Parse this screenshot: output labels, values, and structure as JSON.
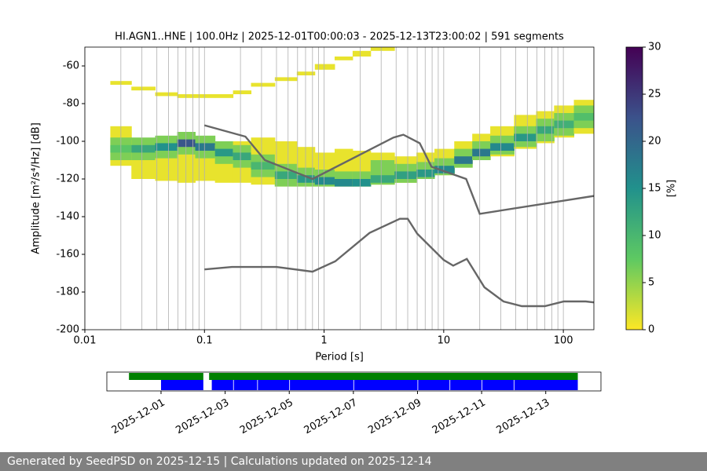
{
  "chart_data": {
    "type": "ppsd",
    "title": "HI.AGN1..HNE | 100.0Hz | 2025-12-01T00:00:03 - 2025-12-13T23:00:02 | 591 segments",
    "xlabel": "Period [s]",
    "ylabel": "Amplitude [m²/s⁴/Hz] [dB]",
    "xscale": "log",
    "xlim": [
      0.01,
      180
    ],
    "xticks": [
      0.01,
      0.1,
      1,
      10,
      100
    ],
    "xminorticks": [
      0.02,
      0.03,
      0.04,
      0.05,
      0.06,
      0.07,
      0.08,
      0.09,
      0.2,
      0.3,
      0.4,
      0.5,
      0.6,
      0.7,
      0.8,
      0.9,
      2,
      3,
      4,
      5,
      6,
      7,
      8,
      9,
      20,
      30,
      40,
      50,
      60,
      70,
      80,
      90
    ],
    "grid": true,
    "ylim": [
      -200,
      -50
    ],
    "yticks": [
      -200,
      -180,
      -160,
      -140,
      -120,
      -100,
      -80,
      -60
    ],
    "colormap": [
      "#fde725",
      "#5ec962",
      "#21918c",
      "#3b528b",
      "#440154"
    ],
    "clim": [
      0,
      30
    ],
    "cticks": [
      0,
      5,
      10,
      15,
      20,
      25,
      30
    ],
    "clabel": "[%]",
    "pdf_columns": [
      {
        "period": 0.02,
        "cells": [
          [
            -113,
            -92,
            1
          ],
          [
            -110,
            -98,
            6
          ],
          [
            -106,
            -102,
            8
          ],
          [
            -70,
            -68,
            1
          ]
        ]
      },
      {
        "period": 0.03,
        "cells": [
          [
            -120,
            -99,
            1
          ],
          [
            -110,
            -98,
            6
          ],
          [
            -106,
            -102,
            12
          ],
          [
            -73,
            -71,
            1
          ]
        ]
      },
      {
        "period": 0.05,
        "cells": [
          [
            -121,
            -100,
            1
          ],
          [
            -109,
            -97,
            6
          ],
          [
            -105,
            -101,
            15
          ],
          [
            -76,
            -74,
            1
          ]
        ]
      },
      {
        "period": 0.07,
        "cells": [
          [
            -122,
            -99,
            1
          ],
          [
            -107,
            -95,
            6
          ],
          [
            -103,
            -99,
            22
          ],
          [
            -77,
            -75,
            1
          ]
        ]
      },
      {
        "period": 0.1,
        "cells": [
          [
            -121,
            -100,
            1
          ],
          [
            -109,
            -97,
            6
          ],
          [
            -105,
            -101,
            18
          ],
          [
            -77,
            -75,
            1
          ]
        ]
      },
      {
        "period": 0.15,
        "cells": [
          [
            -122,
            -102,
            1
          ],
          [
            -112,
            -100,
            6
          ],
          [
            -108,
            -104,
            14
          ],
          [
            -77,
            -75,
            1
          ]
        ]
      },
      {
        "period": 0.2,
        "cells": [
          [
            -122,
            -100,
            1
          ],
          [
            -114,
            -102,
            6
          ],
          [
            -110,
            -106,
            12
          ],
          [
            -75,
            -73,
            1
          ]
        ]
      },
      {
        "period": 0.3,
        "cells": [
          [
            -123,
            -98,
            1
          ],
          [
            -119,
            -107,
            6
          ],
          [
            -115,
            -111,
            10
          ],
          [
            -71,
            -69,
            1
          ]
        ]
      },
      {
        "period": 0.5,
        "cells": [
          [
            -124,
            -100,
            1
          ],
          [
            -124,
            -112,
            6
          ],
          [
            -120,
            -116,
            12
          ],
          [
            -68,
            -66,
            1
          ]
        ]
      },
      {
        "period": 0.7,
        "cells": [
          [
            -124,
            -103,
            1
          ],
          [
            -124,
            -114,
            6
          ],
          [
            -122,
            -118,
            14
          ],
          [
            -65,
            -63,
            1
          ]
        ]
      },
      {
        "period": 1,
        "cells": [
          [
            -124,
            -106,
            1
          ],
          [
            -124,
            -115,
            6
          ],
          [
            -123,
            -119,
            16
          ],
          [
            -62,
            -59,
            1
          ]
        ]
      },
      {
        "period": 1.5,
        "cells": [
          [
            -124,
            -104,
            1
          ],
          [
            -124,
            -116,
            6
          ],
          [
            -124,
            -120,
            16
          ],
          [
            -57,
            -55,
            1
          ]
        ]
      },
      {
        "period": 2,
        "cells": [
          [
            -124,
            -105,
            1
          ],
          [
            -124,
            -116,
            6
          ],
          [
            -124,
            -120,
            15
          ],
          [
            -55,
            -52,
            1
          ]
        ]
      },
      {
        "period": 3,
        "cells": [
          [
            -123,
            -106,
            1
          ],
          [
            -123,
            -110,
            6
          ],
          [
            -122,
            -118,
            12
          ],
          [
            -52,
            -50,
            1
          ]
        ]
      },
      {
        "period": 5,
        "cells": [
          [
            -122,
            -108,
            1
          ],
          [
            -122,
            -112,
            6
          ],
          [
            -120,
            -116,
            13
          ]
        ]
      },
      {
        "period": 7,
        "cells": [
          [
            -120,
            -106,
            1
          ],
          [
            -120,
            -111,
            6
          ],
          [
            -119,
            -115,
            14
          ]
        ]
      },
      {
        "period": 10,
        "cells": [
          [
            -118,
            -104,
            1
          ],
          [
            -118,
            -109,
            6
          ],
          [
            -117,
            -113,
            16
          ]
        ]
      },
      {
        "period": 15,
        "cells": [
          [
            -114,
            -100,
            1
          ],
          [
            -114,
            -104,
            6
          ],
          [
            -112,
            -108,
            18
          ]
        ]
      },
      {
        "period": 20,
        "cells": [
          [
            -110,
            -96,
            1
          ],
          [
            -110,
            -100,
            6
          ],
          [
            -108,
            -104,
            18
          ]
        ]
      },
      {
        "period": 30,
        "cells": [
          [
            -108,
            -92,
            1
          ],
          [
            -107,
            -97,
            6
          ],
          [
            -105,
            -101,
            16
          ]
        ]
      },
      {
        "period": 50,
        "cells": [
          [
            -104,
            -86,
            1
          ],
          [
            -103,
            -92,
            6
          ],
          [
            -100,
            -96,
            14
          ]
        ]
      },
      {
        "period": 70,
        "cells": [
          [
            -101,
            -84,
            1
          ],
          [
            -100,
            -88,
            6
          ],
          [
            -96,
            -92,
            12
          ]
        ]
      },
      {
        "period": 100,
        "cells": [
          [
            -98,
            -81,
            1
          ],
          [
            -97,
            -85,
            6
          ],
          [
            -93,
            -89,
            11
          ]
        ]
      },
      {
        "period": 150,
        "cells": [
          [
            -96,
            -78,
            1
          ],
          [
            -93,
            -81,
            6
          ],
          [
            -89,
            -85,
            9
          ]
        ]
      }
    ],
    "series": [
      {
        "color": "#666666",
        "x": [
          0.1,
          0.22,
          0.32,
          0.8,
          3.8,
          4.6,
          6.3,
          7.9,
          15.4,
          20,
          180
        ],
        "values": [
          -91.5,
          -97.5,
          -110,
          -120,
          -98,
          -96.5,
          -101,
          -113.5,
          -120,
          -138.5,
          -129
        ]
      },
      {
        "color": "#666666",
        "x": [
          0.1,
          0.17,
          0.4,
          0.8,
          1.24,
          2.4,
          4.3,
          5,
          6,
          10,
          12,
          15.6,
          21.9,
          31.6,
          45,
          70,
          101,
          154,
          180
        ],
        "values": [
          -168,
          -166.7,
          -166.7,
          -169.2,
          -163.7,
          -148.6,
          -141.1,
          -141.1,
          -149,
          -163,
          -166,
          -162.4,
          -177.5,
          -185,
          -187.5,
          -187.5,
          -185,
          -185,
          -185.5
        ]
      }
    ],
    "timeline": {
      "xlim": [
        "2025-11-29T07:26:00",
        "2025-12-14T17:20:00"
      ],
      "xticks": [
        "2025-12-01",
        "2025-12-03",
        "2025-12-05",
        "2025-12-07",
        "2025-12-09",
        "2025-12-11",
        "2025-12-13"
      ],
      "data_color": "#008000",
      "data_spans": [
        [
          "2025-11-30T00:00:00",
          "2025-12-02T07:40:00"
        ],
        [
          "2025-12-02T12:00:00",
          "2025-12-14T00:00:00"
        ]
      ],
      "psd_color": "#0000ff",
      "psd_spans": [
        [
          "2025-12-01T00:00:00",
          "2025-12-02T07:40:00"
        ],
        [
          "2025-12-02T14:00:00",
          "2025-12-03T06:00:00"
        ],
        [
          "2025-12-03T06:30:00",
          "2025-12-04T00:00:00"
        ],
        [
          "2025-12-04T00:30:00",
          "2025-12-05T00:00:00"
        ],
        [
          "2025-12-05T00:30:00",
          "2025-12-07T00:00:00"
        ],
        [
          "2025-12-07T00:30:00",
          "2025-12-09T00:00:00"
        ],
        [
          "2025-12-09T00:30:00",
          "2025-12-10T00:00:00"
        ],
        [
          "2025-12-10T00:30:00",
          "2025-12-11T00:00:00"
        ],
        [
          "2025-12-11T00:30:00",
          "2025-12-12T00:00:00"
        ],
        [
          "2025-12-12T00:30:00",
          "2025-12-14T00:00:00"
        ]
      ]
    }
  },
  "footer": "Generated by SeedPSD on 2025-12-15 | Calculations updated on 2025-12-14"
}
